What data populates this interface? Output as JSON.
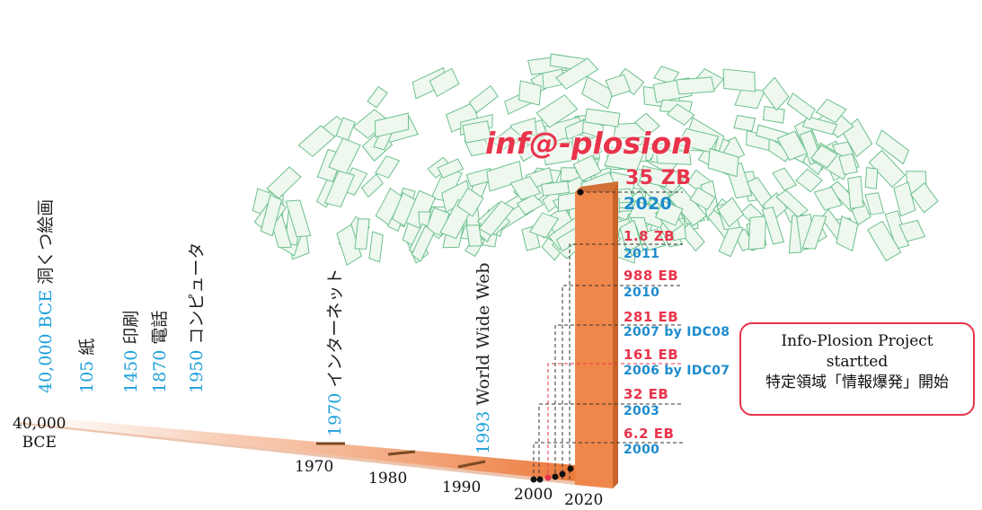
{
  "logo": {
    "text": "inf@-plosion"
  },
  "timeline_labels": [
    {
      "year": "40,000 BCE",
      "text": " 洞くつ絵画"
    },
    {
      "year": "105",
      "text": " 紙"
    },
    {
      "year": "1450",
      "text": " 印刷"
    },
    {
      "year": "1870",
      "text": " 電話"
    },
    {
      "year": "1950",
      "text": " コンピュータ"
    },
    {
      "year": "1970",
      "text": " インターネット"
    },
    {
      "year": "1993",
      "text": " World Wide Web"
    }
  ],
  "axis_years": [
    "1970",
    "1980",
    "1990",
    "2000",
    "2020"
  ],
  "start_label": {
    "line1": "40,000",
    "line2": "BCE"
  },
  "data_volumes": [
    {
      "amount": "35 ZB",
      "year": "2020"
    },
    {
      "amount": "1.8 ZB",
      "year": "2011"
    },
    {
      "amount": "988 EB",
      "year": "2010"
    },
    {
      "amount": "281 EB",
      "year": "2007 by IDC08"
    },
    {
      "amount": "161 EB",
      "year": "2006 by IDC07"
    },
    {
      "amount": "32 EB",
      "year": "2003"
    },
    {
      "amount": "6.2 EB",
      "year": "2000"
    }
  ],
  "callout": {
    "line1": "Info-Plosion Project",
    "line2": "startted",
    "line3": "特定領域「情報爆発」開始"
  },
  "colors": {
    "year_blue": "#1ea0dc",
    "amount_red": "#e8344b",
    "bar_orange": "#f0874a",
    "bar_dark": "#c8642a",
    "paper_green": "#6cc08c",
    "paper_fill": "#eef8ef"
  }
}
